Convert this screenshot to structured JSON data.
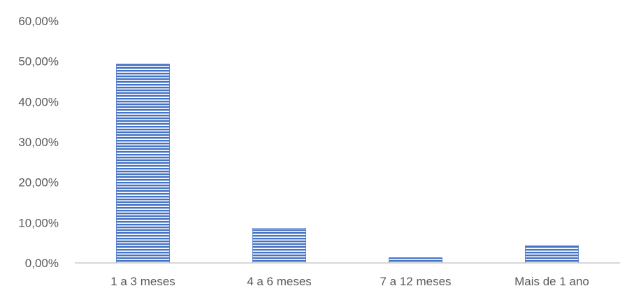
{
  "chart_data": {
    "type": "bar",
    "title": "",
    "xlabel": "",
    "ylabel": "",
    "categories": [
      "1 a 3 meses",
      "4 a 6 meses",
      "7 a 12 meses",
      "Mais de 1 ano"
    ],
    "values": [
      49.3,
      8.6,
      1.3,
      4.3
    ],
    "ylim": [
      0,
      60
    ],
    "yticks": [
      0,
      10,
      20,
      30,
      40,
      50,
      60
    ],
    "ytick_labels": [
      "0,00%",
      "10,00%",
      "20,00%",
      "30,00%",
      "40,00%",
      "50,00%",
      "60,00%"
    ],
    "grid": false,
    "legend": "none",
    "bar_color": "#4472C4",
    "axis_color": "#BFBFBF",
    "text_color": "#595959"
  }
}
